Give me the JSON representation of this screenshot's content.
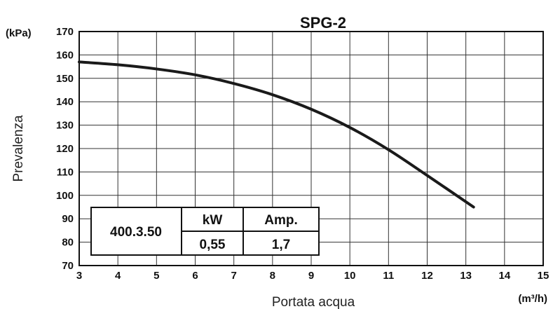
{
  "chart_data": {
    "type": "line",
    "title": "SPG-2",
    "xlabel": "Portata acqua",
    "ylabel": "Prevalenza",
    "x_unit": "(m³/h)",
    "y_unit": "(kPa)",
    "xlim": [
      3,
      15
    ],
    "ylim": [
      70,
      170
    ],
    "x_ticks": [
      3,
      4,
      5,
      6,
      7,
      8,
      9,
      10,
      11,
      12,
      13,
      14,
      15
    ],
    "y_ticks": [
      70,
      80,
      90,
      100,
      110,
      120,
      130,
      140,
      150,
      160,
      170
    ],
    "grid": true,
    "series": [
      {
        "x": [
          3,
          4,
          5,
          6,
          7,
          8,
          9,
          10,
          11,
          12,
          13.2
        ],
        "y": [
          157,
          155.8,
          154,
          151.5,
          147.8,
          143,
          136.8,
          129,
          119.5,
          108.5,
          95
        ]
      }
    ],
    "specs_table": {
      "supply": "400.3.50",
      "headers": [
        "kW",
        "Amp."
      ],
      "values": [
        "0,55",
        "1,7"
      ]
    }
  }
}
